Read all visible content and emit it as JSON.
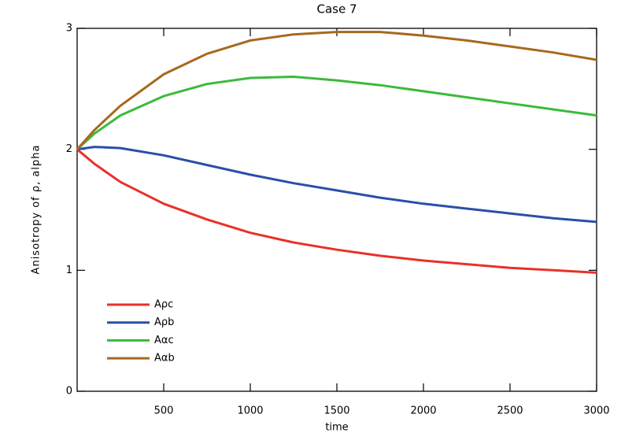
{
  "chart_data": {
    "type": "line",
    "title": "Case 7",
    "x_label": "time",
    "y_label": "Anisotropy of ρ, alpha",
    "x": [
      0,
      100,
      250,
      500,
      750,
      1000,
      1250,
      1500,
      1750,
      2000,
      2250,
      2500,
      2750,
      3000
    ],
    "series": [
      {
        "name": "Aρc",
        "color": "#e8312a",
        "values": [
          2.0,
          1.88,
          1.73,
          1.55,
          1.42,
          1.31,
          1.23,
          1.17,
          1.12,
          1.08,
          1.05,
          1.02,
          1.0,
          0.98
        ]
      },
      {
        "name": "Aρb",
        "color": "#2a4fa8",
        "values": [
          2.0,
          2.02,
          2.01,
          1.95,
          1.87,
          1.79,
          1.72,
          1.66,
          1.6,
          1.55,
          1.51,
          1.47,
          1.43,
          1.4
        ]
      },
      {
        "name": "Aαc",
        "color": "#3cba3c",
        "values": [
          2.0,
          2.13,
          2.28,
          2.44,
          2.54,
          2.59,
          2.6,
          2.57,
          2.53,
          2.48,
          2.43,
          2.38,
          2.33,
          2.28
        ]
      },
      {
        "name": "Aαb",
        "color": "#a8681e",
        "values": [
          2.0,
          2.16,
          2.36,
          2.62,
          2.79,
          2.9,
          2.95,
          2.97,
          2.97,
          2.94,
          2.9,
          2.85,
          2.8,
          2.74
        ]
      }
    ],
    "xlim": [
      0,
      3000
    ],
    "xticks": [
      500,
      1000,
      1500,
      2000,
      2500,
      3000
    ],
    "ylim": [
      0,
      3
    ],
    "yticks": [
      0,
      1,
      2,
      3
    ],
    "legend": "lower-left"
  }
}
